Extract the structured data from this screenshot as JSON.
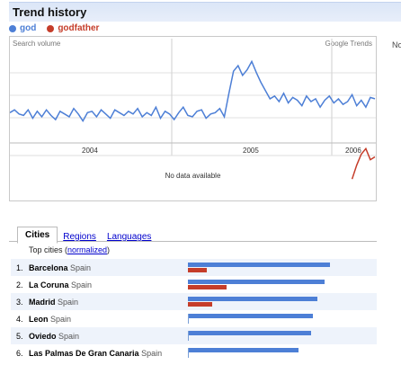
{
  "header": {
    "title": "Trend history"
  },
  "legend": [
    {
      "label": "god",
      "color": "#4d7fd6"
    },
    {
      "label": "godfather",
      "color": "#c53d2a"
    }
  ],
  "right_edge_text": "No",
  "chart": {
    "search_volume_label": "Search volume",
    "source_label": "Google Trends",
    "no_data_text": "No data available",
    "years": [
      "2004",
      "2005",
      "2006"
    ]
  },
  "chart_data": {
    "type": "line",
    "x_ticks": [
      "2004",
      "2005",
      "2006"
    ],
    "series": [
      {
        "name": "god",
        "color": "#4d7fd6",
        "values": [
          48,
          50,
          47,
          46,
          50,
          44,
          49,
          45,
          50,
          46,
          43,
          49,
          47,
          45,
          51,
          47,
          42,
          48,
          49,
          45,
          50,
          47,
          44,
          50,
          48,
          46,
          49,
          47,
          51,
          45,
          48,
          46,
          52,
          44,
          49,
          47,
          43,
          48,
          52,
          46,
          45,
          49,
          50,
          44,
          47,
          48,
          51,
          45,
          62,
          78,
          82,
          75,
          79,
          85,
          77,
          70,
          64,
          58,
          60,
          56,
          62,
          55,
          59,
          57,
          53,
          60,
          56,
          58,
          52,
          57,
          60,
          55,
          58,
          54,
          56,
          61,
          53,
          57,
          52,
          59,
          58
        ]
      },
      {
        "name": "godfather",
        "color": "#c53d2a",
        "values": [
          null,
          null,
          null,
          null,
          null,
          null,
          null,
          null,
          null,
          null,
          null,
          null,
          null,
          null,
          null,
          null,
          null,
          null,
          null,
          null,
          null,
          null,
          null,
          null,
          null,
          null,
          null,
          null,
          null,
          null,
          null,
          null,
          null,
          null,
          null,
          null,
          null,
          null,
          null,
          null,
          null,
          null,
          null,
          null,
          null,
          null,
          null,
          null,
          null,
          null,
          null,
          null,
          null,
          null,
          null,
          null,
          null,
          null,
          null,
          null,
          null,
          null,
          null,
          null,
          null,
          null,
          null,
          null,
          null,
          null,
          null,
          null,
          null,
          null,
          null,
          0,
          10,
          18,
          22,
          14,
          16
        ]
      }
    ]
  },
  "tabs": [
    {
      "label": "Cities",
      "active": true
    },
    {
      "label": "Regions",
      "active": false
    },
    {
      "label": "Languages",
      "active": false
    }
  ],
  "top_cities": {
    "prefix": "Top cities (",
    "link": "normalized",
    "suffix": ")"
  },
  "cities": [
    {
      "rank": "1.",
      "city": "Barcelona",
      "country": "Spain",
      "god": 1.0,
      "godfather": 0.13
    },
    {
      "rank": "2.",
      "city": "La Coruna",
      "country": "Spain",
      "god": 0.96,
      "godfather": 0.27
    },
    {
      "rank": "3.",
      "city": "Madrid",
      "country": "Spain",
      "god": 0.91,
      "godfather": 0.17
    },
    {
      "rank": "4.",
      "city": "Leon",
      "country": "Spain",
      "god": 0.88,
      "godfather": 0
    },
    {
      "rank": "5.",
      "city": "Oviedo",
      "country": "Spain",
      "god": 0.87,
      "godfather": 0
    },
    {
      "rank": "6.",
      "city": "Las Palmas De Gran Canaria",
      "country": "Spain",
      "god": 0.78,
      "godfather": 0
    }
  ]
}
